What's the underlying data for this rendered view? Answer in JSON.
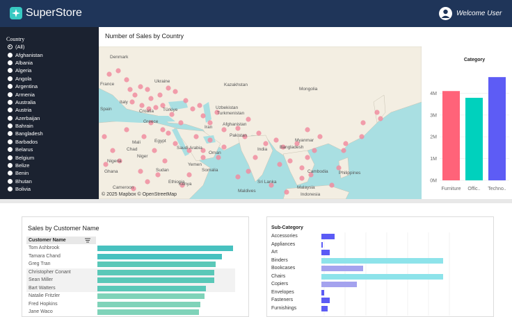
{
  "header": {
    "brand": "SuperStore",
    "welcome": "Welcome User"
  },
  "sidebar": {
    "title": "Country",
    "selected_index": 0,
    "items": [
      "(All)",
      "Afghanistan",
      "Albania",
      "Algeria",
      "Angola",
      "Argentina",
      "Armenia",
      "Australia",
      "Austria",
      "Azerbaijan",
      "Bahrain",
      "Bangladesh",
      "Barbados",
      "Belarus",
      "Belgium",
      "Belize",
      "Benin",
      "Bhutan",
      "Bolivia"
    ]
  },
  "map_panel": {
    "title": "Number of Sales by Country",
    "credit": "© 2025 Mapbox © OpenStreetMap",
    "labels": [
      "Denmark",
      "Ukraine",
      "Kazakhstan",
      "Mongolia",
      "Italy",
      "Croatia",
      "Türkiye",
      "Uzbekistan",
      "Turkmenistan",
      "Iran",
      "Afghanistan",
      "Egypt",
      "Saudi Arabia",
      "Oman",
      "Yemen",
      "Pakistan",
      "India",
      "Bangladesh",
      "Myanmar",
      "Cambodia",
      "Philippines",
      "Malaysia",
      "Sri Lanka",
      "Maldives",
      "Indonesia",
      "Chad",
      "Sudan",
      "Ethiopia",
      "Nigeria",
      "Cameroon",
      "Ghana",
      "Mali",
      "Niger",
      "Somalia",
      "Kenya",
      "Greece",
      "France",
      "Spain"
    ]
  },
  "chart_data": [
    {
      "type": "bar",
      "title": "Category",
      "categories": [
        "Furniture",
        "Offic..",
        "Techno.."
      ],
      "values": [
        4100000,
        3790000,
        4740000
      ],
      "colors": [
        "#ff6379",
        "#00d1bd",
        "#5d5cf5"
      ],
      "ytick_labels": [
        "0M",
        "1M",
        "2M",
        "3M",
        "4M"
      ],
      "ylim": [
        0,
        5000000
      ],
      "grid": true
    },
    {
      "type": "bar",
      "title": "Sales by Customer Name",
      "column_header": "Customer Name",
      "categories": [
        "Tom Ashbrook",
        "Tamara Chand",
        "Greg Tran",
        "Christopher Conant",
        "Sean Miller",
        "Bart Watters",
        "Natalie Fritzler",
        "Fred Hopkins",
        "Jane Waco"
      ],
      "values": [
        100,
        92,
        87,
        86,
        86,
        80,
        79,
        76,
        75
      ],
      "highlighted_rows": [
        3,
        4,
        5
      ],
      "color": "#47c1bf"
    },
    {
      "type": "bar",
      "title": "Sub-Category",
      "categories": [
        "Accessories",
        "Appliances",
        "Art",
        "Binders",
        "Bookcases",
        "Chairs",
        "Copiers",
        "Envelopes",
        "Fasteners",
        "Furnishings"
      ],
      "values": [
        11,
        1,
        7,
        100,
        34,
        100,
        29,
        2,
        7,
        5
      ],
      "colors": [
        "#5b5bf5",
        "#5b5bf5",
        "#5b5bf5",
        "#8de3ea",
        "#a4a2ee",
        "#8de3ea",
        "#a4a2ee",
        "#5b5bf5",
        "#5b5bf5",
        "#5b5bf5"
      ]
    }
  ]
}
